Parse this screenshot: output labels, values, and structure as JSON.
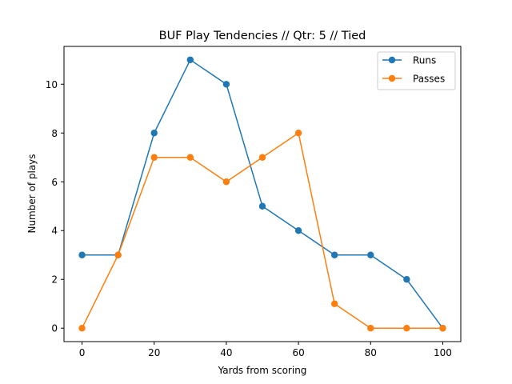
{
  "chart_data": {
    "type": "line",
    "title": "BUF Play Tendencies // Qtr: 5 // Tied",
    "xlabel": "Yards from scoring",
    "ylabel": "Number of plays",
    "x": [
      0,
      10,
      20,
      30,
      40,
      50,
      60,
      70,
      80,
      90,
      100
    ],
    "xlim": [
      -5,
      105
    ],
    "ylim": [
      -0.55,
      11.55
    ],
    "xticks": [
      0,
      20,
      40,
      60,
      80,
      100
    ],
    "yticks": [
      0,
      2,
      4,
      6,
      8,
      10
    ],
    "grid": false,
    "legend_position": "top-right",
    "series": [
      {
        "name": "Runs",
        "color": "#1f77b4",
        "values": [
          3,
          3,
          8,
          11,
          10,
          5,
          4,
          3,
          3,
          2,
          0
        ]
      },
      {
        "name": "Passes",
        "color": "#ff7f0e",
        "values": [
          0,
          3,
          7,
          7,
          6,
          7,
          8,
          1,
          0,
          0,
          0
        ]
      }
    ]
  }
}
